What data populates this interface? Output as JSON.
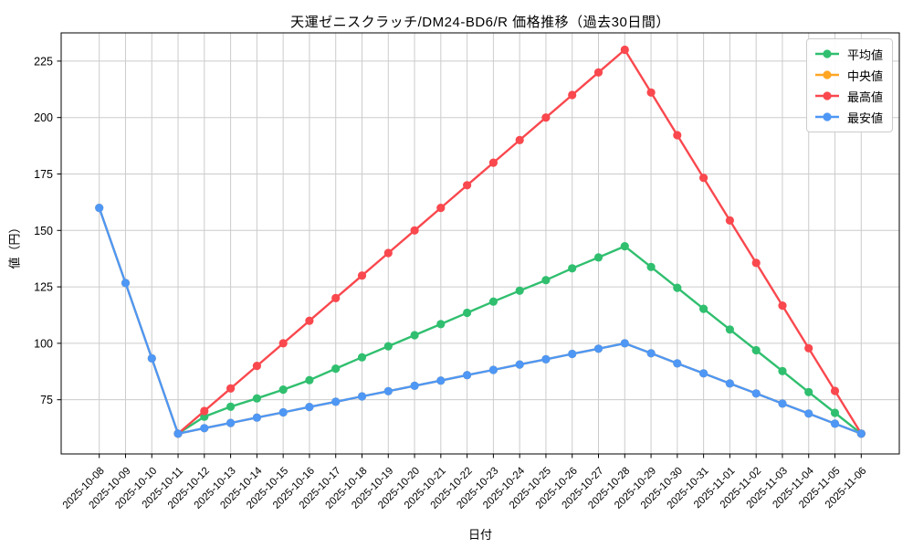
{
  "chart_data": {
    "type": "line",
    "title": "天運ゼニスクラッチ/DM24-BD6/R 価格推移（過去30日間）",
    "xlabel": "日付",
    "ylabel": "値（円）",
    "grid": true,
    "legend_position": "upper right",
    "ylim": [
      51,
      237.5
    ],
    "yticks": [
      75,
      100,
      125,
      150,
      175,
      200,
      225
    ],
    "x": [
      "2025-10-08",
      "2025-10-09",
      "2025-10-10",
      "2025-10-11",
      "2025-10-12",
      "2025-10-13",
      "2025-10-14",
      "2025-10-15",
      "2025-10-16",
      "2025-10-17",
      "2025-10-18",
      "2025-10-19",
      "2025-10-20",
      "2025-10-21",
      "2025-10-22",
      "2025-10-23",
      "2025-10-24",
      "2025-10-25",
      "2025-10-26",
      "2025-10-27",
      "2025-10-28",
      "2025-10-29",
      "2025-10-30",
      "2025-10-31",
      "2025-11-01",
      "2025-11-02",
      "2025-11-03",
      "2025-11-04",
      "2025-11-05",
      "2025-11-06"
    ],
    "series": [
      {
        "name": "平均値",
        "color": "#30bf6f",
        "values": [
          null,
          null,
          null,
          60,
          67.5,
          71.9,
          75.6,
          79.5,
          83.7,
          88.8,
          93.8,
          98.7,
          103.6,
          108.5,
          113.5,
          118.5,
          123.3,
          128,
          133.2,
          138,
          143,
          133.8,
          124.6,
          115.3,
          106.1,
          96.9,
          87.7,
          78.4,
          69.2,
          60
        ]
      },
      {
        "name": "中央値",
        "color": "#ffa623",
        "values": [
          160,
          126.7,
          93.3,
          60,
          62.4,
          64.7,
          67.1,
          69.4,
          71.8,
          74.1,
          76.5,
          78.8,
          81.2,
          83.5,
          85.9,
          88.2,
          90.6,
          92.9,
          95.3,
          97.6,
          100,
          95.6,
          91.1,
          86.7,
          82.2,
          77.8,
          73.3,
          68.9,
          64.4,
          60
        ]
      },
      {
        "name": "最高値",
        "color": "#f9484e",
        "values": [
          null,
          null,
          null,
          60,
          70,
          80,
          90,
          100,
          110,
          120,
          130,
          140,
          150,
          160,
          170,
          180,
          190,
          200,
          210,
          220,
          230,
          211.1,
          192.2,
          173.3,
          154.4,
          135.6,
          116.7,
          97.8,
          78.9,
          60
        ]
      },
      {
        "name": "最安値",
        "color": "#4e97f5",
        "values": [
          160,
          126.7,
          93.3,
          60,
          62.4,
          64.7,
          67.1,
          69.4,
          71.8,
          74.1,
          76.5,
          78.8,
          81.2,
          83.5,
          85.9,
          88.2,
          90.6,
          92.9,
          95.3,
          97.6,
          100,
          95.6,
          91.1,
          86.7,
          82.2,
          77.8,
          73.3,
          68.9,
          64.4,
          60
        ]
      }
    ],
    "grid_color": "#cccccc",
    "spine_color": "#000000"
  }
}
